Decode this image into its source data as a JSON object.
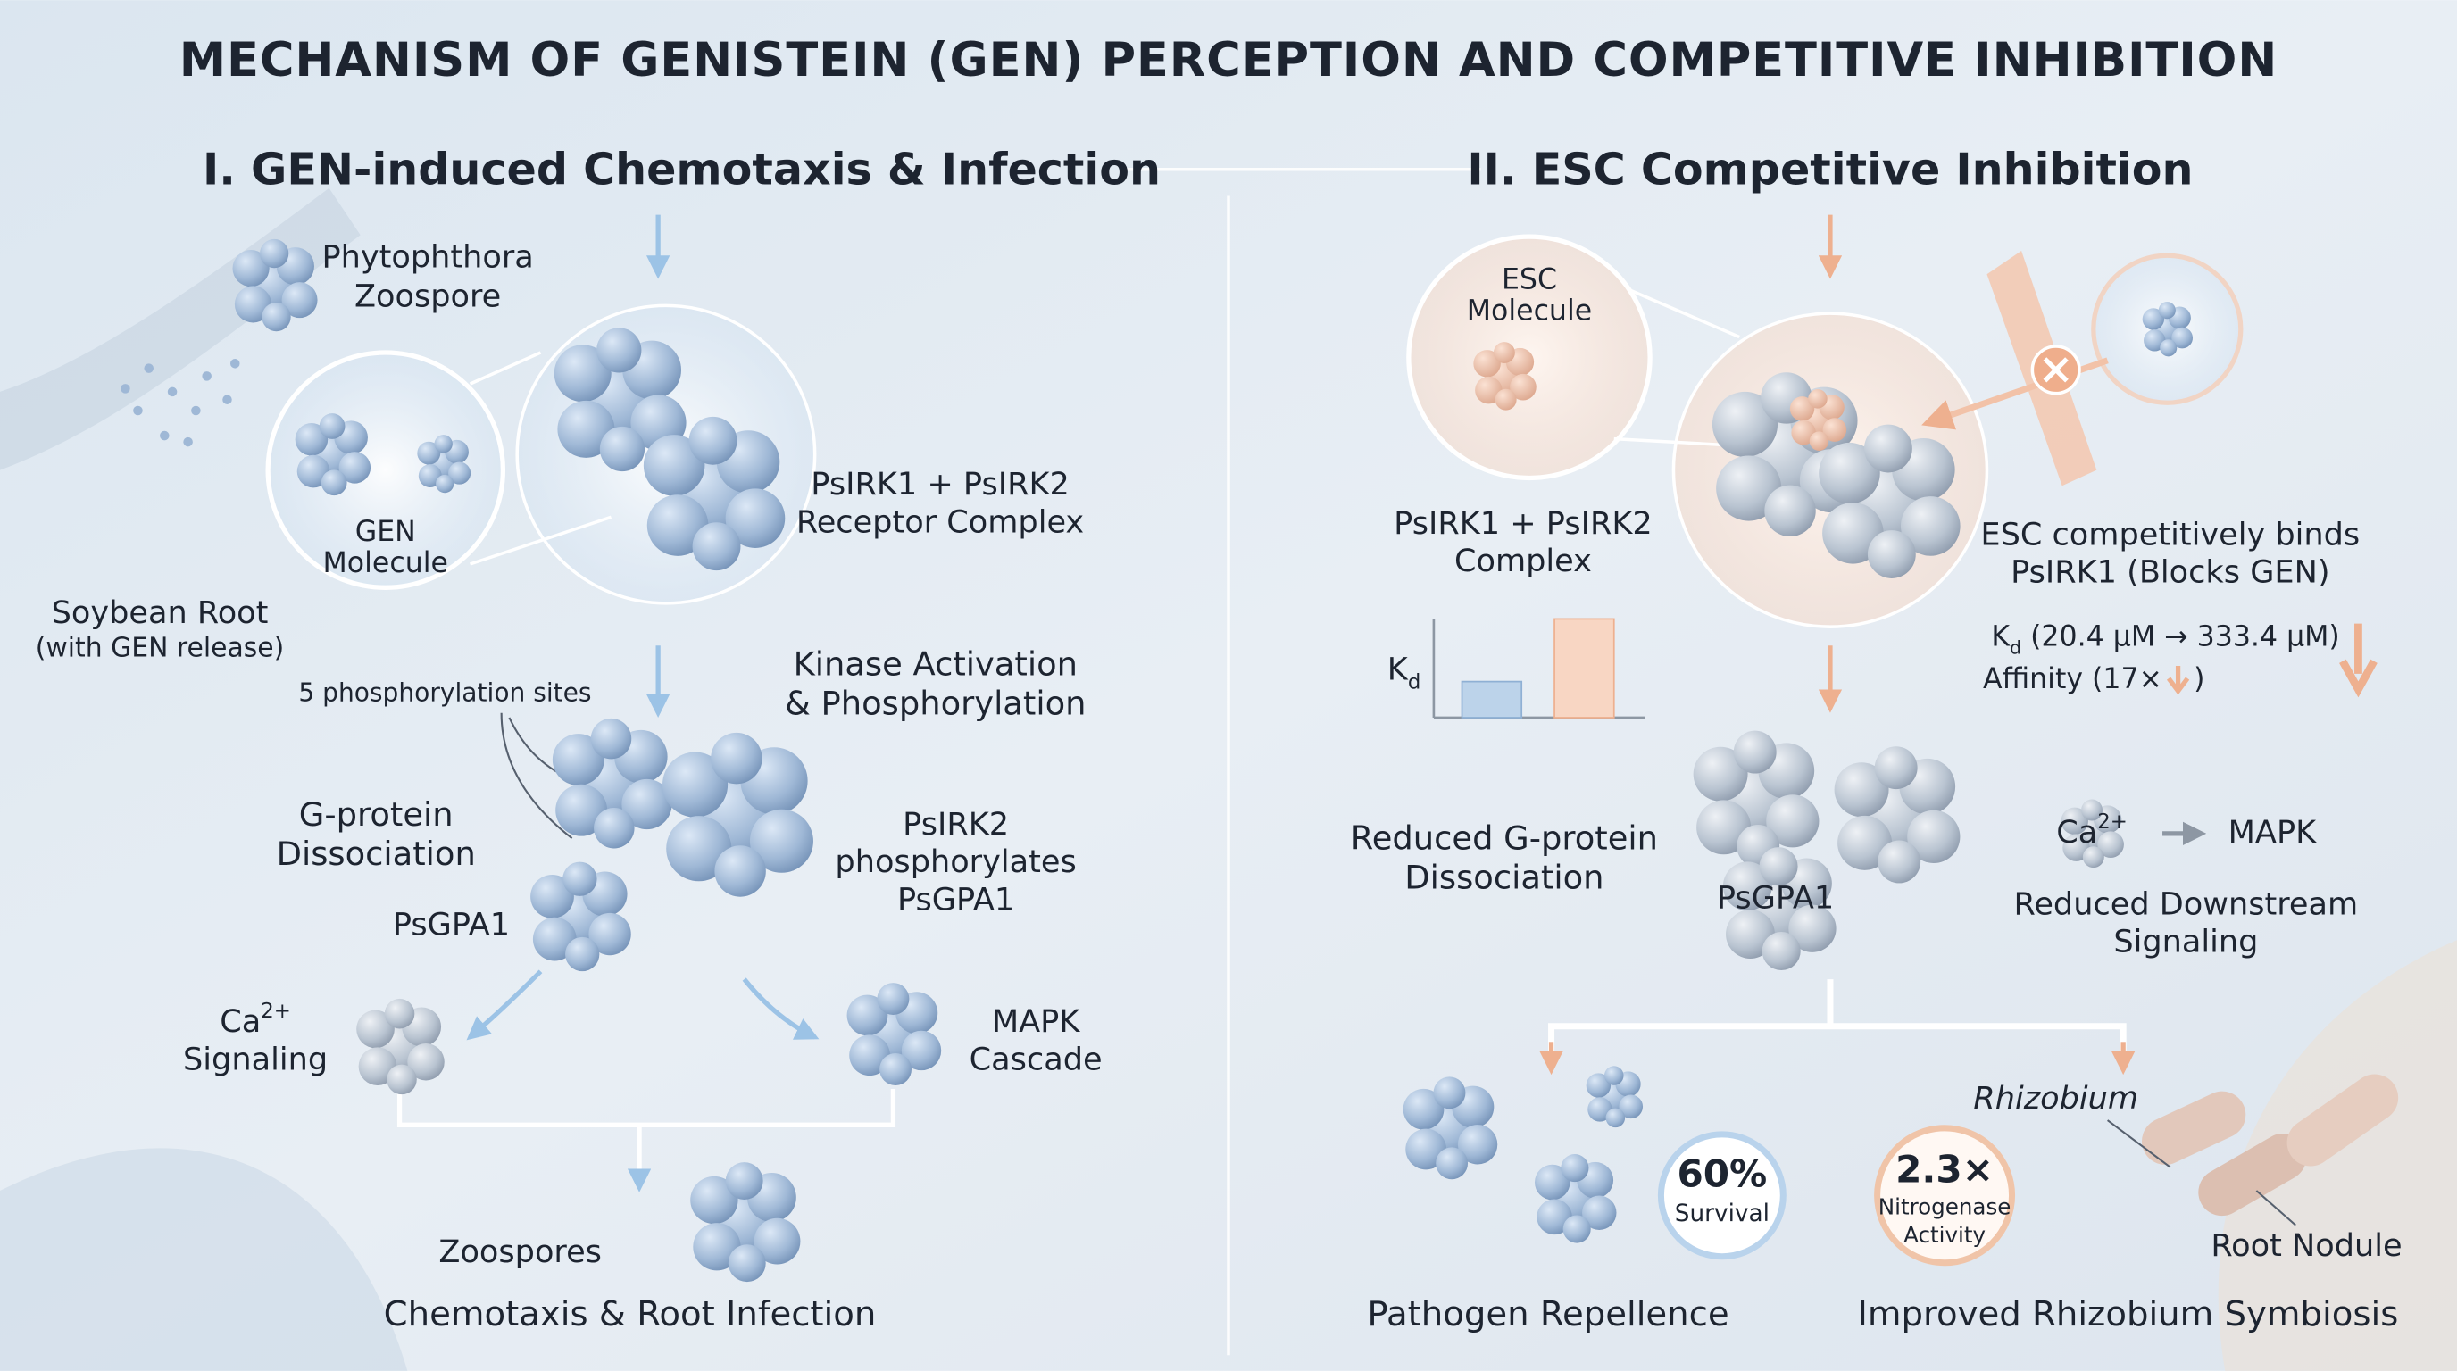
{
  "title": "MECHANISM OF GENISTEIN (GEN) PERCEPTION AND COMPETITIVE INHIBITION",
  "left": {
    "heading": "I. GEN-induced Chemotaxis & Infection",
    "zoospore": [
      "Phytophthora",
      "Zoospore"
    ],
    "gen_molecule": [
      "GEN",
      "Molecule"
    ],
    "soybean_root": "Soybean Root",
    "gen_release": "(with GEN release)",
    "receptor": [
      "PsIRK1 + PsIRK2",
      "Receptor Complex"
    ],
    "sites": "5 phosphorylation sites",
    "kinase": [
      "Kinase Activation",
      "& Phosphorylation"
    ],
    "gprotein": [
      "G-protein",
      "Dissociation"
    ],
    "psgpa1": "PsGPA1",
    "psirk2": [
      "PsIRK2",
      "phosphorylates",
      "PsGPA1"
    ],
    "ca": {
      "base": "Ca",
      "sup": "2+",
      "line2": "Signaling"
    },
    "mapk": [
      "MAPK",
      "Cascade"
    ],
    "zoospores": "Zoospores",
    "outcome": "Chemotaxis & Root Infection"
  },
  "right": {
    "heading": "II. ESC Competitive Inhibition",
    "esc_molecule": [
      "ESC",
      "Molecule"
    ],
    "complex": [
      "PsIRK1 + PsIRK2",
      "Complex"
    ],
    "binds": [
      "ESC competitively binds",
      "PsIRK1 (Blocks GEN)"
    ],
    "kd_axis": {
      "base": "K",
      "sub": "d"
    },
    "kd_text": {
      "base": "K",
      "sub": "d",
      "rest": " (20.4 μM → 333.4 μM)"
    },
    "affinity": [
      "Affinity (17×",
      ")"
    ],
    "reduced_g": [
      "Reduced G-protein",
      "Dissociation"
    ],
    "psgpa1": "PsGPA1",
    "ca": {
      "base": "Ca",
      "sup": "2+"
    },
    "mapk": "MAPK",
    "reduced_down": [
      "Reduced Downstream",
      "Signaling"
    ],
    "survival": {
      "value": "60%",
      "label": "Survival"
    },
    "nitrogenase": {
      "value": "2.3×",
      "label": [
        "Nitrogenase",
        "Activity"
      ]
    },
    "rhizobium": "Rhizobium",
    "nodule": "Root Nodule",
    "repellence": "Pathogen Repellence",
    "symbiosis": "Improved Rhizobium Symbiosis"
  }
}
